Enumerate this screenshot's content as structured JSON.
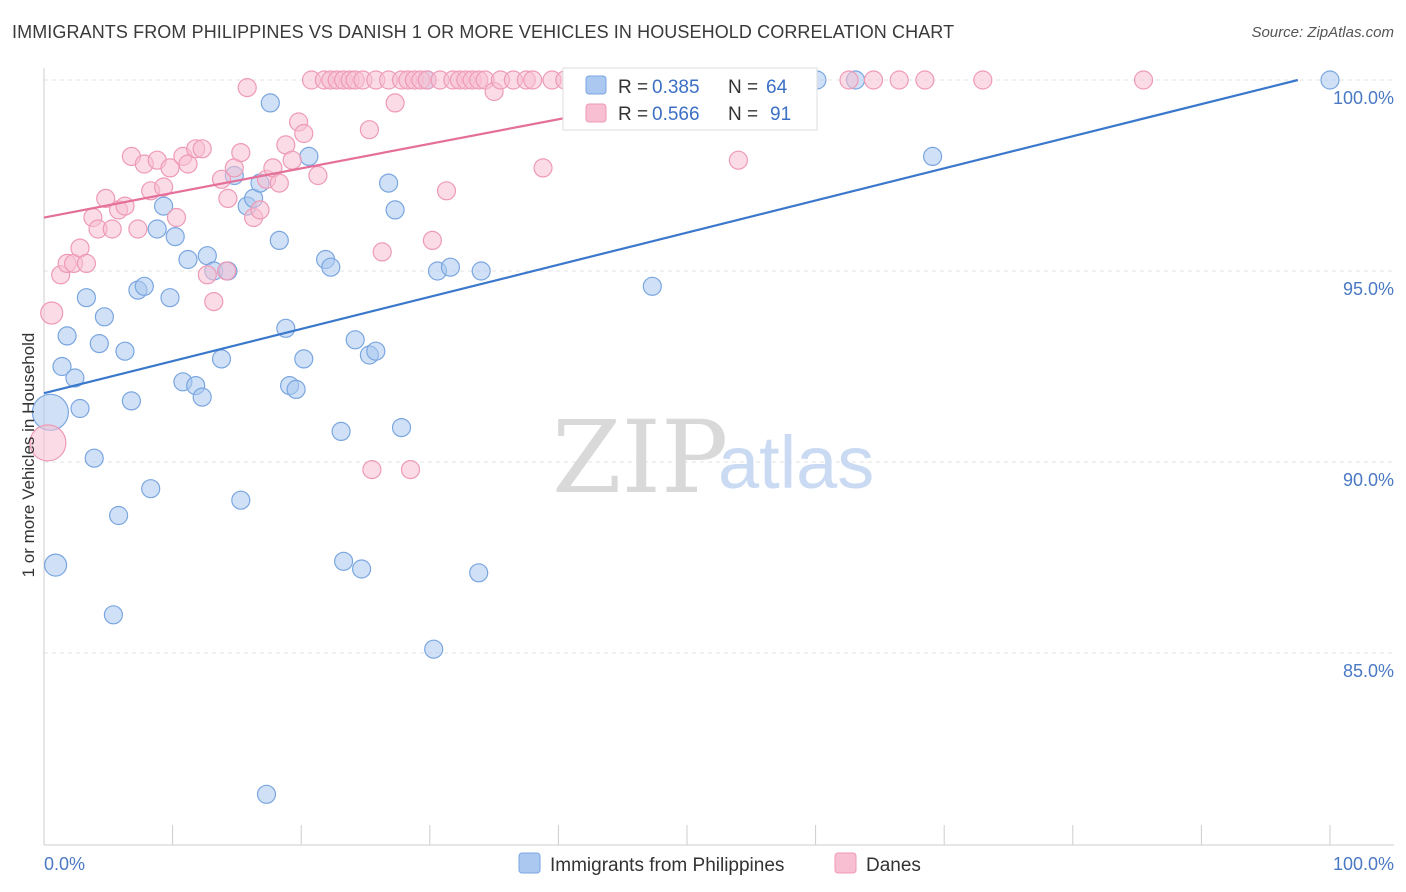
{
  "title": "IMMIGRANTS FROM PHILIPPINES VS DANISH 1 OR MORE VEHICLES IN HOUSEHOLD CORRELATION CHART",
  "source": "Source: ZipAtlas.com",
  "watermark": {
    "zip": "ZIP",
    "atlas": "atlas"
  },
  "colors": {
    "blue_fill": "#aac8f0",
    "blue_stroke": "#7aa6e0",
    "blue_line": "#3a78cc",
    "pink_fill": "#f8bfd2",
    "pink_stroke": "#ee9ab6",
    "pink_line": "#e4709a",
    "grid": "#e3e3e3",
    "tick_text": "#4a79c4"
  },
  "chart_data": {
    "type": "scatter",
    "title": "IMMIGRANTS FROM PHILIPPINES VS DANISH 1 OR MORE VEHICLES IN HOUSEHOLD CORRELATION CHART",
    "xlabel": "",
    "ylabel": "1 or more Vehicles in Household",
    "xlim": [
      0,
      100
    ],
    "ylim": [
      80.5,
      100.8
    ],
    "x_tick_labels": [
      "0.0%",
      "100.0%"
    ],
    "y_ticks": [
      85,
      90,
      95,
      100
    ],
    "y_tick_labels": [
      "85.0%",
      "90.0%",
      "95.0%",
      "100.0%"
    ],
    "legend": {
      "placement": "top-center",
      "rows": [
        {
          "r_label": "R =",
          "r_value": "0.385",
          "n_label": "N =",
          "n_value": "64"
        },
        {
          "r_label": "R =",
          "r_value": "0.566",
          "n_label": "N =",
          "n_value": "91"
        }
      ]
    },
    "bottom_legend": [
      "Immigrants from Philippines",
      "Danes"
    ],
    "series": [
      {
        "name": "Immigrants from Philippines",
        "color": "blue",
        "trend": {
          "x0": 0,
          "y0": 91.8,
          "x1": 97.5,
          "y1": 100.0
        },
        "points": [
          [
            0.5,
            91.3,
            18
          ],
          [
            0.9,
            87.3,
            11
          ],
          [
            1.4,
            92.5,
            9
          ],
          [
            1.8,
            93.3,
            9
          ],
          [
            2.4,
            92.2,
            9
          ],
          [
            2.8,
            91.4,
            9
          ],
          [
            3.3,
            94.3,
            9
          ],
          [
            3.9,
            90.1,
            9
          ],
          [
            4.3,
            93.1,
            9
          ],
          [
            4.7,
            93.8,
            9
          ],
          [
            5.4,
            86.0,
            9
          ],
          [
            5.8,
            88.6,
            9
          ],
          [
            6.3,
            92.9,
            9
          ],
          [
            6.8,
            91.6,
            9
          ],
          [
            7.3,
            94.5,
            9
          ],
          [
            7.8,
            94.6,
            9
          ],
          [
            8.3,
            89.3,
            9
          ],
          [
            8.8,
            96.1,
            9
          ],
          [
            9.3,
            96.7,
            9
          ],
          [
            9.8,
            94.3,
            9
          ],
          [
            10.2,
            95.9,
            9
          ],
          [
            10.8,
            92.1,
            9
          ],
          [
            11.2,
            95.3,
            9
          ],
          [
            11.8,
            92.0,
            9
          ],
          [
            12.3,
            91.7,
            9
          ],
          [
            12.7,
            95.4,
            9
          ],
          [
            13.2,
            95.0,
            9
          ],
          [
            13.8,
            92.7,
            9
          ],
          [
            14.3,
            95.0,
            9
          ],
          [
            14.8,
            97.5,
            9
          ],
          [
            15.3,
            89.0,
            9
          ],
          [
            15.8,
            96.7,
            9
          ],
          [
            16.3,
            96.9,
            9
          ],
          [
            16.8,
            97.3,
            9
          ],
          [
            17.3,
            81.3,
            9
          ],
          [
            17.6,
            99.4,
            9
          ],
          [
            18.3,
            95.8,
            9
          ],
          [
            18.8,
            93.5,
            9
          ],
          [
            19.1,
            92.0,
            9
          ],
          [
            19.6,
            91.9,
            9
          ],
          [
            20.2,
            92.7,
            9
          ],
          [
            20.6,
            98.0,
            9
          ],
          [
            21.9,
            95.3,
            9
          ],
          [
            22.3,
            95.1,
            9
          ],
          [
            23.1,
            90.8,
            9
          ],
          [
            23.3,
            87.4,
            9
          ],
          [
            24.2,
            93.2,
            9
          ],
          [
            24.7,
            87.2,
            9
          ],
          [
            25.3,
            92.8,
            9
          ],
          [
            25.8,
            92.9,
            9
          ],
          [
            26.8,
            97.3,
            9
          ],
          [
            27.3,
            96.6,
            9
          ],
          [
            27.8,
            90.9,
            9
          ],
          [
            29.8,
            100.0,
            9
          ],
          [
            30.3,
            85.1,
            9
          ],
          [
            30.6,
            95.0,
            9
          ],
          [
            31.6,
            95.1,
            9
          ],
          [
            33.8,
            87.1,
            9
          ],
          [
            34.0,
            95.0,
            9
          ],
          [
            47.3,
            94.6,
            9
          ],
          [
            60.1,
            100.0,
            9
          ],
          [
            63.1,
            100.0,
            9
          ],
          [
            69.1,
            98.0,
            9
          ],
          [
            100.0,
            100.0,
            9
          ]
        ]
      },
      {
        "name": "Danes",
        "color": "pink",
        "trend": {
          "x0": 0,
          "y0": 96.4,
          "x1": 56,
          "y1": 100.0
        },
        "points": [
          [
            0.3,
            90.5,
            18
          ],
          [
            0.6,
            93.9,
            11
          ],
          [
            1.3,
            94.9,
            9
          ],
          [
            1.8,
            95.2,
            9
          ],
          [
            2.3,
            95.2,
            9
          ],
          [
            2.8,
            95.6,
            9
          ],
          [
            3.3,
            95.2,
            9
          ],
          [
            3.8,
            96.4,
            9
          ],
          [
            4.2,
            96.1,
            9
          ],
          [
            4.8,
            96.9,
            9
          ],
          [
            5.3,
            96.1,
            9
          ],
          [
            5.8,
            96.6,
            9
          ],
          [
            6.3,
            96.7,
            9
          ],
          [
            6.8,
            98.0,
            9
          ],
          [
            7.3,
            96.1,
            9
          ],
          [
            7.8,
            97.8,
            9
          ],
          [
            8.3,
            97.1,
            9
          ],
          [
            8.8,
            97.9,
            9
          ],
          [
            9.3,
            97.2,
            9
          ],
          [
            9.8,
            97.7,
            9
          ],
          [
            10.3,
            96.4,
            9
          ],
          [
            10.8,
            98.0,
            9
          ],
          [
            11.2,
            97.8,
            9
          ],
          [
            11.8,
            98.2,
            9
          ],
          [
            12.3,
            98.2,
            9
          ],
          [
            12.7,
            94.9,
            9
          ],
          [
            13.2,
            94.2,
            9
          ],
          [
            13.8,
            97.4,
            9
          ],
          [
            14.3,
            96.9,
            9
          ],
          [
            14.8,
            97.7,
            9
          ],
          [
            15.3,
            98.1,
            9
          ],
          [
            15.8,
            99.8,
            9
          ],
          [
            16.3,
            96.4,
            9
          ],
          [
            16.8,
            96.6,
            9
          ],
          [
            17.3,
            97.4,
            9
          ],
          [
            17.8,
            97.7,
            9
          ],
          [
            18.3,
            97.3,
            9
          ],
          [
            18.8,
            98.3,
            9
          ],
          [
            19.3,
            97.9,
            9
          ],
          [
            19.8,
            98.9,
            9
          ],
          [
            20.2,
            98.6,
            9
          ],
          [
            20.8,
            100.0,
            9
          ],
          [
            21.3,
            97.5,
            9
          ],
          [
            21.8,
            100.0,
            9
          ],
          [
            22.3,
            100.0,
            9
          ],
          [
            22.8,
            100.0,
            9
          ],
          [
            23.3,
            100.0,
            9
          ],
          [
            23.8,
            100.0,
            9
          ],
          [
            24.2,
            100.0,
            9
          ],
          [
            24.8,
            100.0,
            9
          ],
          [
            25.3,
            98.7,
            9
          ],
          [
            25.8,
            100.0,
            9
          ],
          [
            26.3,
            95.5,
            9
          ],
          [
            26.8,
            100.0,
            9
          ],
          [
            27.3,
            99.4,
            9
          ],
          [
            27.8,
            100.0,
            9
          ],
          [
            28.3,
            100.0,
            9
          ],
          [
            28.8,
            100.0,
            9
          ],
          [
            29.3,
            100.0,
            9
          ],
          [
            29.8,
            100.0,
            9
          ],
          [
            30.2,
            95.8,
            9
          ],
          [
            30.8,
            100.0,
            9
          ],
          [
            31.3,
            97.1,
            9
          ],
          [
            31.8,
            100.0,
            9
          ],
          [
            32.3,
            100.0,
            9
          ],
          [
            32.8,
            100.0,
            9
          ],
          [
            33.3,
            100.0,
            9
          ],
          [
            33.8,
            100.0,
            9
          ],
          [
            34.3,
            100.0,
            9
          ],
          [
            35.0,
            99.7,
            9
          ],
          [
            35.5,
            100.0,
            9
          ],
          [
            36.5,
            100.0,
            9
          ],
          [
            37.5,
            100.0,
            9
          ],
          [
            38.0,
            100.0,
            9
          ],
          [
            38.8,
            97.7,
            9
          ],
          [
            39.5,
            100.0,
            9
          ],
          [
            40.5,
            100.0,
            9
          ],
          [
            44.0,
            100.0,
            9
          ],
          [
            45.0,
            100.0,
            9
          ],
          [
            47.0,
            100.0,
            9
          ],
          [
            50.5,
            100.0,
            9
          ],
          [
            54.0,
            97.9,
            9
          ],
          [
            62.6,
            100.0,
            9
          ],
          [
            64.5,
            100.0,
            9
          ],
          [
            66.5,
            100.0,
            9
          ],
          [
            68.5,
            100.0,
            9
          ],
          [
            73.0,
            100.0,
            9
          ],
          [
            85.5,
            100.0,
            9
          ],
          [
            25.5,
            89.8,
            9
          ],
          [
            28.5,
            89.8,
            9
          ],
          [
            14.2,
            95.0,
            9
          ]
        ]
      }
    ]
  }
}
